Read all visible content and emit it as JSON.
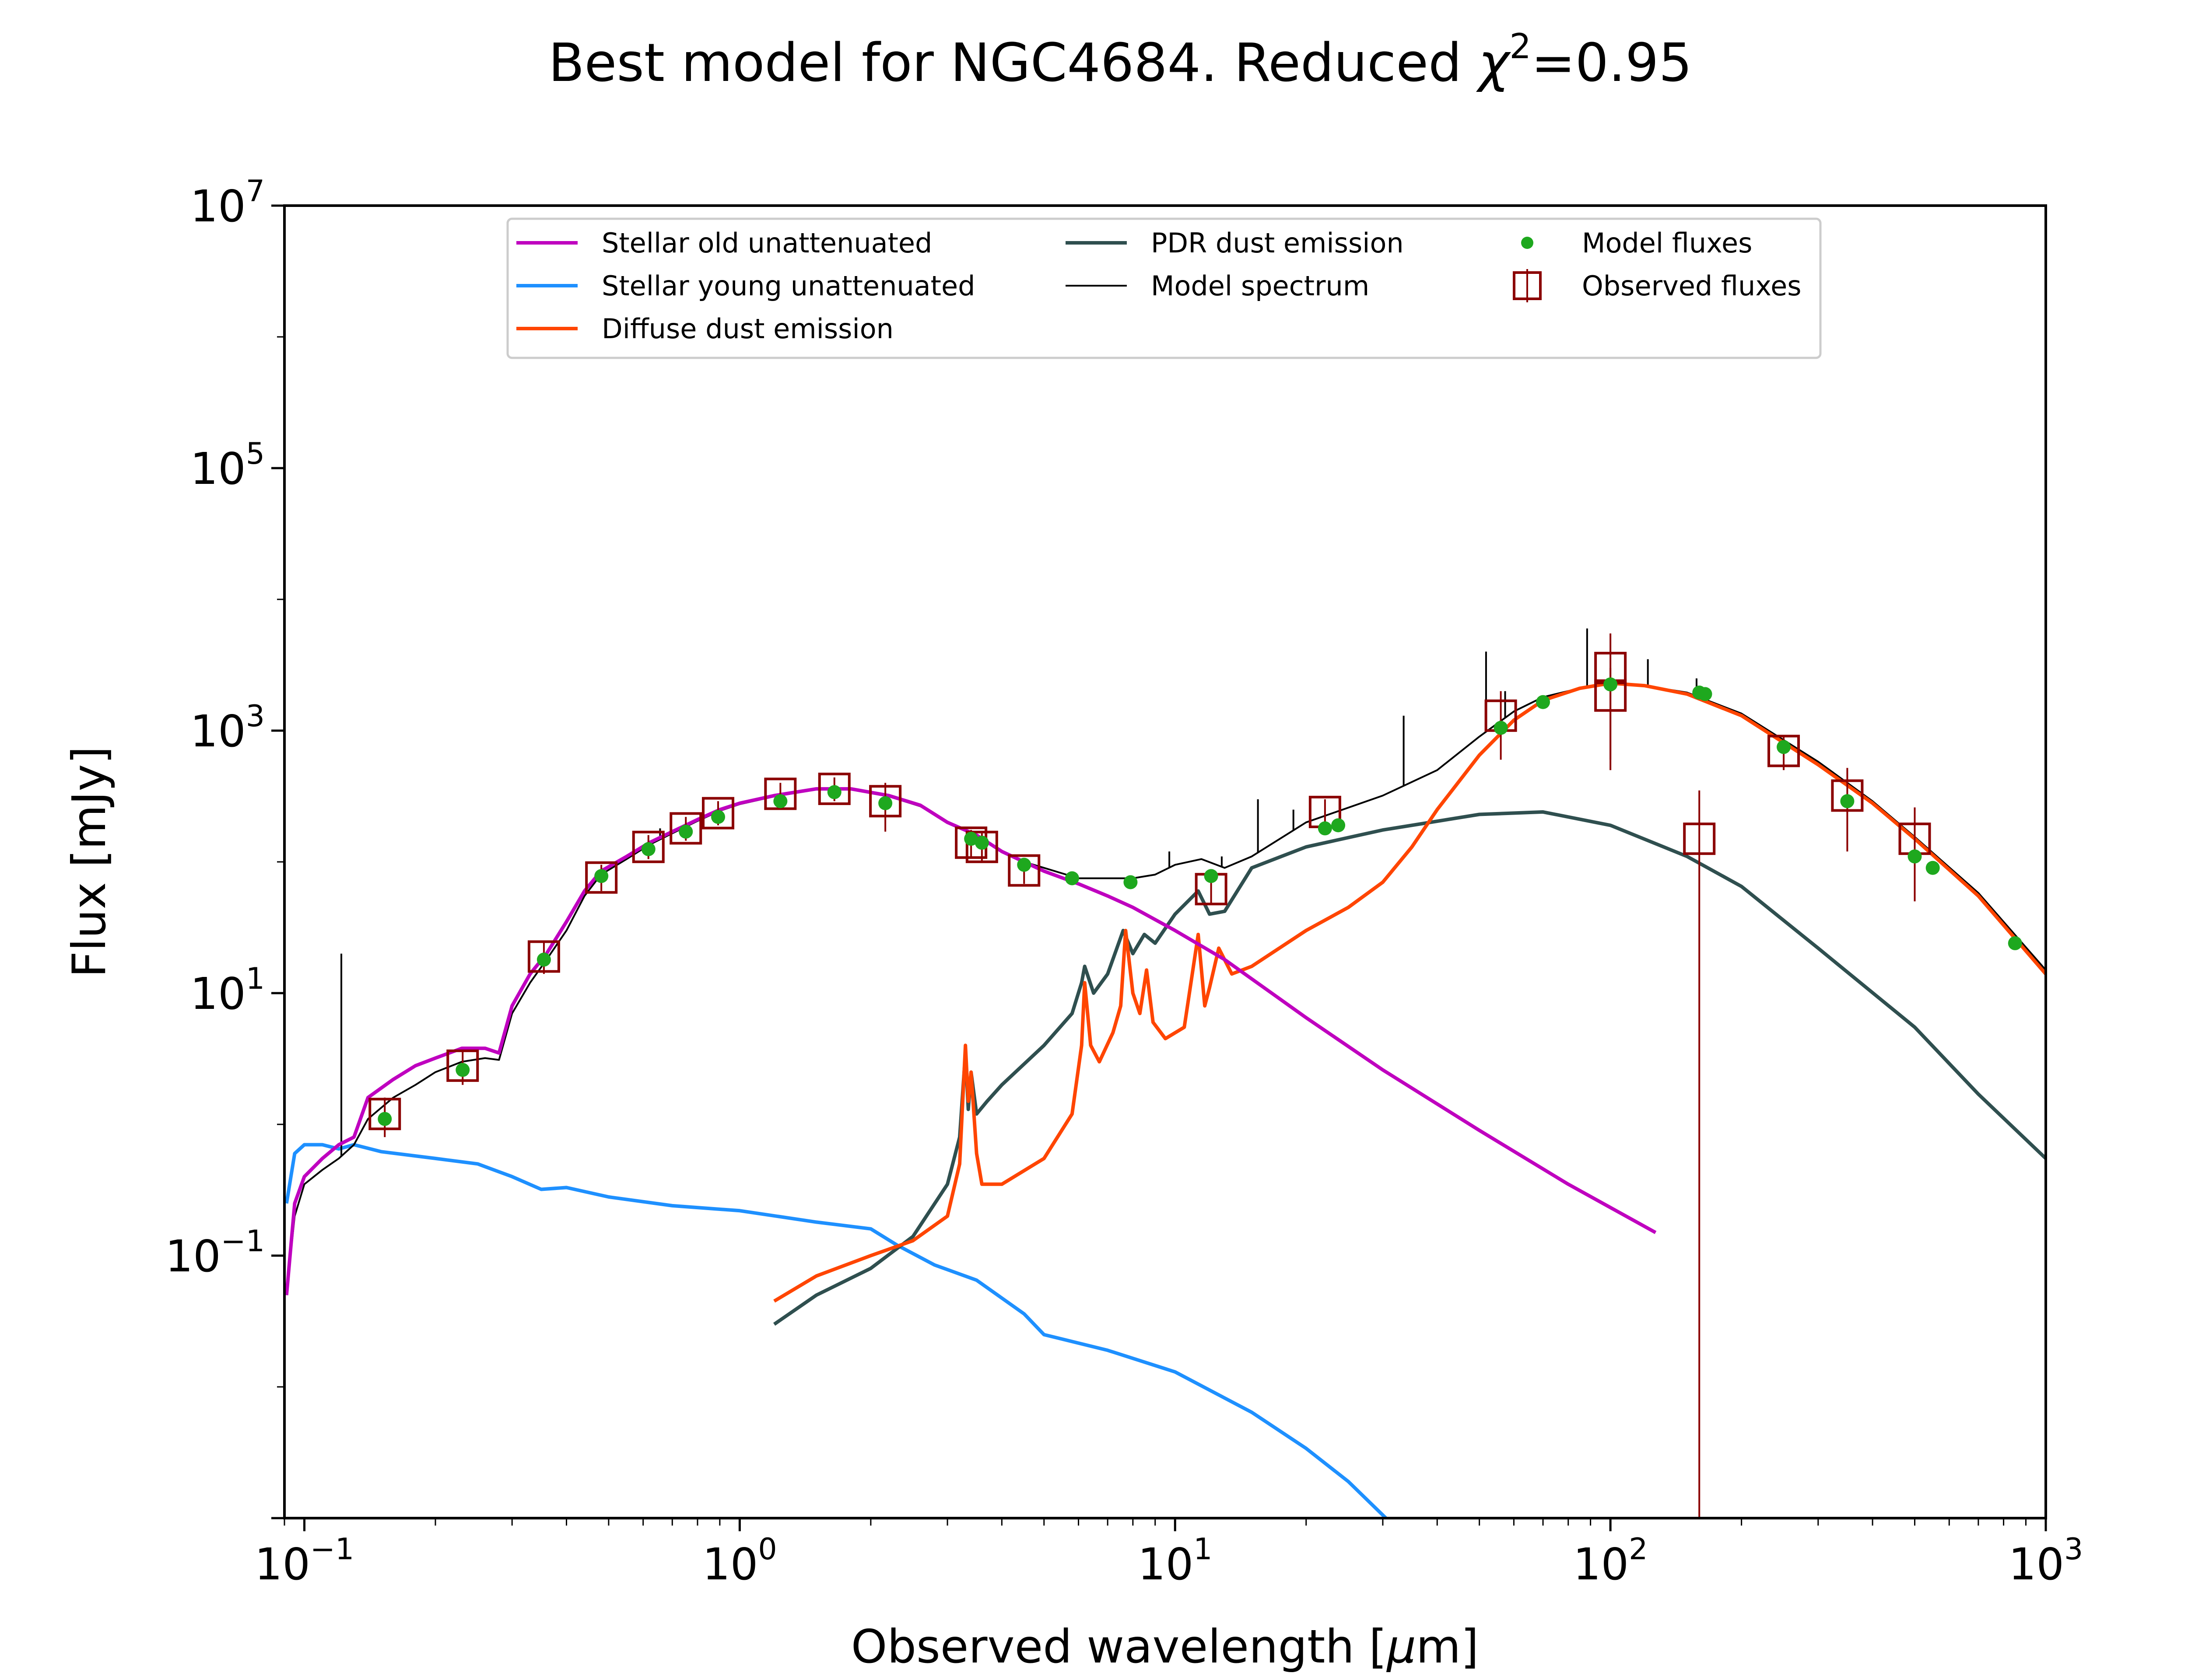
{
  "chart_data": {
    "type": "line",
    "title": "Best model for NGC4684. Reduced χ²=0.95",
    "title_parts": {
      "prefix": "Best model for NGC4684. Reduced ",
      "chi": "χ",
      "exp": "2",
      "suffix": "=0.95"
    },
    "xlabel": "Observed wavelength [μm]",
    "xlabel_parts": {
      "prefix": "Observed wavelength [",
      "mu": "μ",
      "suffix": "m]"
    },
    "ylabel": "Flux [mJy]",
    "x_scale": "log",
    "y_scale": "log",
    "xlim": [
      0.09,
      1000
    ],
    "ylim": [
      0.001,
      10000000
    ],
    "x_ticks": [
      {
        "value": 0.1,
        "base": "10",
        "exp": "−1"
      },
      {
        "value": 1,
        "base": "10",
        "exp": "0"
      },
      {
        "value": 10,
        "base": "10",
        "exp": "1"
      },
      {
        "value": 100,
        "base": "10",
        "exp": "2"
      },
      {
        "value": 1000,
        "base": "10",
        "exp": "3"
      }
    ],
    "y_ticks": [
      {
        "value": 0.1,
        "base": "10",
        "exp": "−1"
      },
      {
        "value": 10,
        "base": "10",
        "exp": "1"
      },
      {
        "value": 1000,
        "base": "10",
        "exp": "3"
      },
      {
        "value": 100000,
        "base": "10",
        "exp": "5"
      },
      {
        "value": 10000000,
        "base": "10",
        "exp": "7"
      }
    ],
    "legend_position": "top-center",
    "grid": false,
    "series": [
      {
        "name": "Stellar old unattenuated",
        "kind": "line",
        "color": "#bf00bf",
        "points": [
          [
            0.091,
            0.05
          ],
          [
            0.095,
            0.25
          ],
          [
            0.1,
            0.4
          ],
          [
            0.11,
            0.55
          ],
          [
            0.12,
            0.7
          ],
          [
            0.13,
            0.8
          ],
          [
            0.14,
            1.6
          ],
          [
            0.16,
            2.2
          ],
          [
            0.18,
            2.8
          ],
          [
            0.2,
            3.2
          ],
          [
            0.23,
            3.8
          ],
          [
            0.26,
            3.8
          ],
          [
            0.28,
            3.5
          ],
          [
            0.3,
            8
          ],
          [
            0.33,
            14
          ],
          [
            0.36,
            20
          ],
          [
            0.4,
            35
          ],
          [
            0.44,
            60
          ],
          [
            0.48,
            85
          ],
          [
            0.55,
            110
          ],
          [
            0.62,
            140
          ],
          [
            0.7,
            170
          ],
          [
            0.8,
            210
          ],
          [
            0.9,
            250
          ],
          [
            1.0,
            280
          ],
          [
            1.2,
            320
          ],
          [
            1.5,
            360
          ],
          [
            1.8,
            360
          ],
          [
            2.2,
            320
          ],
          [
            2.6,
            270
          ],
          [
            3.0,
            200
          ],
          [
            3.5,
            160
          ],
          [
            4.0,
            120
          ],
          [
            4.5,
            100
          ],
          [
            5.0,
            85
          ],
          [
            6.0,
            68
          ],
          [
            7.0,
            55
          ],
          [
            8.0,
            45
          ],
          [
            10.0,
            30
          ],
          [
            13.0,
            18
          ],
          [
            20.0,
            6.5
          ],
          [
            30.0,
            2.6
          ],
          [
            50.0,
            0.9
          ],
          [
            80.0,
            0.35
          ],
          [
            127.0,
            0.15
          ]
        ]
      },
      {
        "name": "Stellar young unattenuated",
        "kind": "line",
        "color": "#1e90ff",
        "points": [
          [
            0.091,
            0.25
          ],
          [
            0.095,
            0.6
          ],
          [
            0.1,
            0.7
          ],
          [
            0.11,
            0.7
          ],
          [
            0.12,
            0.65
          ],
          [
            0.13,
            0.7
          ],
          [
            0.15,
            0.62
          ],
          [
            0.2,
            0.55
          ],
          [
            0.25,
            0.5
          ],
          [
            0.3,
            0.4
          ],
          [
            0.35,
            0.32
          ],
          [
            0.4,
            0.33
          ],
          [
            0.5,
            0.28
          ],
          [
            0.7,
            0.24
          ],
          [
            1.0,
            0.22
          ],
          [
            1.5,
            0.18
          ],
          [
            2.0,
            0.16
          ],
          [
            2.3,
            0.12
          ],
          [
            2.8,
            0.085
          ],
          [
            3.5,
            0.065
          ],
          [
            4.5,
            0.036
          ],
          [
            5.0,
            0.025
          ],
          [
            7.0,
            0.019
          ],
          [
            10.0,
            0.013
          ],
          [
            15.0,
            0.0064
          ],
          [
            20.0,
            0.0034
          ],
          [
            25.0,
            0.0019
          ],
          [
            30.5,
            0.001
          ]
        ]
      },
      {
        "name": "Diffuse dust emission",
        "kind": "line",
        "color": "#ff4500",
        "points": [
          [
            1.2,
            0.045
          ],
          [
            1.5,
            0.07
          ],
          [
            2.0,
            0.1
          ],
          [
            2.5,
            0.13
          ],
          [
            3.0,
            0.2
          ],
          [
            3.2,
            0.5
          ],
          [
            3.3,
            4
          ],
          [
            3.35,
            1.5
          ],
          [
            3.4,
            2.5
          ],
          [
            3.5,
            0.6
          ],
          [
            3.6,
            0.35
          ],
          [
            4.0,
            0.35
          ],
          [
            5.0,
            0.55
          ],
          [
            5.8,
            1.2
          ],
          [
            6.1,
            4
          ],
          [
            6.2,
            12
          ],
          [
            6.4,
            4
          ],
          [
            6.7,
            3
          ],
          [
            7.2,
            5
          ],
          [
            7.5,
            8
          ],
          [
            7.7,
            30
          ],
          [
            8.0,
            10
          ],
          [
            8.3,
            7
          ],
          [
            8.6,
            15
          ],
          [
            8.9,
            6
          ],
          [
            9.5,
            4.5
          ],
          [
            10.5,
            5.5
          ],
          [
            11.3,
            28
          ],
          [
            11.7,
            8
          ],
          [
            12.0,
            11
          ],
          [
            12.6,
            22
          ],
          [
            13.5,
            14
          ],
          [
            15.0,
            16
          ],
          [
            20.0,
            30
          ],
          [
            25.0,
            45
          ],
          [
            30.0,
            70
          ],
          [
            35.0,
            130
          ],
          [
            40.0,
            250
          ],
          [
            50.0,
            650
          ],
          [
            60.0,
            1200
          ],
          [
            70.0,
            1700
          ],
          [
            85.0,
            2100
          ],
          [
            100.0,
            2300
          ],
          [
            120.0,
            2200
          ],
          [
            150.0,
            1900
          ],
          [
            200.0,
            1300
          ],
          [
            300.0,
            550
          ],
          [
            400.0,
            280
          ],
          [
            500.0,
            150
          ],
          [
            700.0,
            55
          ],
          [
            1000.0,
            14
          ]
        ]
      },
      {
        "name": "PDR dust emission",
        "kind": "line",
        "color": "#2f4f4f",
        "points": [
          [
            1.2,
            0.03
          ],
          [
            1.5,
            0.05
          ],
          [
            2.0,
            0.08
          ],
          [
            2.5,
            0.14
          ],
          [
            3.0,
            0.35
          ],
          [
            3.2,
            0.8
          ],
          [
            3.3,
            3.5
          ],
          [
            3.35,
            1.3
          ],
          [
            3.4,
            2.5
          ],
          [
            3.5,
            1.2
          ],
          [
            3.7,
            1.5
          ],
          [
            4.0,
            2
          ],
          [
            5.0,
            4
          ],
          [
            5.8,
            7
          ],
          [
            6.1,
            12
          ],
          [
            6.2,
            16
          ],
          [
            6.5,
            10
          ],
          [
            7.0,
            14
          ],
          [
            7.6,
            30
          ],
          [
            8.0,
            20
          ],
          [
            8.5,
            28
          ],
          [
            9.0,
            24
          ],
          [
            10.0,
            40
          ],
          [
            11.3,
            60
          ],
          [
            12.0,
            40
          ],
          [
            13.0,
            42
          ],
          [
            15.0,
            90
          ],
          [
            20.0,
            130
          ],
          [
            30.0,
            175
          ],
          [
            50.0,
            230
          ],
          [
            70.0,
            240
          ],
          [
            100.0,
            190
          ],
          [
            150.0,
            110
          ],
          [
            200.0,
            65
          ],
          [
            300.0,
            22
          ],
          [
            500.0,
            5.5
          ],
          [
            700.0,
            1.7
          ],
          [
            1000.0,
            0.55
          ]
        ]
      },
      {
        "name": "Model spectrum",
        "kind": "line",
        "color": "#000000",
        "points": [
          [
            0.091,
            0.05
          ],
          [
            0.095,
            0.2
          ],
          [
            0.1,
            0.35
          ],
          [
            0.11,
            0.45
          ],
          [
            0.12,
            0.55
          ],
          [
            0.13,
            0.7
          ],
          [
            0.14,
            1.1
          ],
          [
            0.16,
            1.6
          ],
          [
            0.18,
            2
          ],
          [
            0.2,
            2.5
          ],
          [
            0.23,
            3
          ],
          [
            0.26,
            3.2
          ],
          [
            0.28,
            3.1
          ],
          [
            0.3,
            7
          ],
          [
            0.33,
            12
          ],
          [
            0.36,
            18
          ],
          [
            0.4,
            30
          ],
          [
            0.44,
            55
          ],
          [
            0.48,
            80
          ],
          [
            0.55,
            105
          ],
          [
            0.62,
            135
          ],
          [
            0.7,
            165
          ],
          [
            0.8,
            205
          ],
          [
            0.9,
            245
          ],
          [
            1.0,
            275
          ],
          [
            1.2,
            315
          ],
          [
            1.5,
            355
          ],
          [
            1.8,
            355
          ],
          [
            2.2,
            315
          ],
          [
            2.6,
            265
          ],
          [
            3.0,
            200
          ],
          [
            3.5,
            160
          ],
          [
            4.0,
            120
          ],
          [
            4.5,
            100
          ],
          [
            5.0,
            90
          ],
          [
            6.0,
            75
          ],
          [
            7.0,
            75
          ],
          [
            8.0,
            75
          ],
          [
            9.0,
            80
          ],
          [
            10.0,
            95
          ],
          [
            11.5,
            105
          ],
          [
            13.0,
            90
          ],
          [
            15.0,
            110
          ],
          [
            20.0,
            200
          ],
          [
            30.0,
            320
          ],
          [
            40.0,
            500
          ],
          [
            50.0,
            900
          ],
          [
            60.0,
            1400
          ],
          [
            70.0,
            1800
          ],
          [
            85.0,
            2100
          ],
          [
            100.0,
            2300
          ],
          [
            120.0,
            2200
          ],
          [
            150.0,
            1950
          ],
          [
            200.0,
            1350
          ],
          [
            300.0,
            580
          ],
          [
            400.0,
            290
          ],
          [
            500.0,
            155
          ],
          [
            700.0,
            58
          ],
          [
            1000.0,
            15
          ]
        ],
        "emission_lines": [
          [
            0.1216,
            20
          ],
          [
            0.6563,
            180
          ],
          [
            9.7,
            120
          ],
          [
            12.8,
            110
          ],
          [
            15.5,
            300
          ],
          [
            18.7,
            250
          ],
          [
            33.5,
            1300
          ],
          [
            51.8,
            4000
          ],
          [
            57.3,
            2000
          ],
          [
            88.4,
            6000
          ],
          [
            121.9,
            3500
          ],
          [
            157.7,
            2500
          ]
        ]
      },
      {
        "name": "Model fluxes",
        "kind": "scatter",
        "color": "#1ea81e",
        "points": [
          [
            0.153,
            1.1
          ],
          [
            0.231,
            2.6
          ],
          [
            0.355,
            18
          ],
          [
            0.481,
            78
          ],
          [
            0.617,
            125
          ],
          [
            0.752,
            170
          ],
          [
            0.892,
            220
          ],
          [
            1.24,
            290
          ],
          [
            1.65,
            340
          ],
          [
            2.16,
            280
          ],
          [
            3.4,
            150
          ],
          [
            3.6,
            140
          ],
          [
            4.5,
            95
          ],
          [
            5.8,
            75
          ],
          [
            7.9,
            70
          ],
          [
            12.1,
            78
          ],
          [
            22.1,
            180
          ],
          [
            23.7,
            190
          ],
          [
            56.0,
            1050
          ],
          [
            70.0,
            1650
          ],
          [
            100.0,
            2250
          ],
          [
            160.0,
            1950
          ],
          [
            165.0,
            1900
          ],
          [
            250.0,
            750
          ],
          [
            350.0,
            290
          ],
          [
            500.0,
            110
          ],
          [
            550.0,
            90
          ],
          [
            850.0,
            24
          ]
        ]
      },
      {
        "name": "Observed fluxes",
        "kind": "errorbar",
        "color": "#8b0000",
        "points": [
          [
            0.153,
            1.2,
            0.8,
            1.6
          ],
          [
            0.231,
            2.8,
            2.0,
            3.6
          ],
          [
            0.355,
            19,
            14,
            25
          ],
          [
            0.481,
            76,
            60,
            95
          ],
          [
            0.617,
            130,
            105,
            160
          ],
          [
            0.752,
            180,
            145,
            220
          ],
          [
            0.892,
            235,
            190,
            290
          ],
          [
            1.24,
            330,
            270,
            400
          ],
          [
            1.65,
            360,
            290,
            440
          ],
          [
            2.16,
            290,
            170,
            400
          ],
          [
            3.4,
            140,
            110,
            175
          ],
          [
            3.6,
            130,
            100,
            165
          ],
          [
            4.5,
            86,
            68,
            105
          ],
          [
            12.1,
            62,
            48,
            80
          ],
          [
            22.1,
            240,
            190,
            300
          ],
          [
            56.0,
            1300,
            600,
            2000
          ],
          [
            100.0,
            3000,
            500,
            5500
          ],
          [
            100.0,
            1850,
            600,
            3000
          ],
          [
            160.0,
            150,
            0.001,
            350
          ],
          [
            250.0,
            700,
            500,
            900
          ],
          [
            350.0,
            320,
            120,
            520
          ],
          [
            500.0,
            150,
            50,
            260
          ]
        ]
      }
    ]
  }
}
